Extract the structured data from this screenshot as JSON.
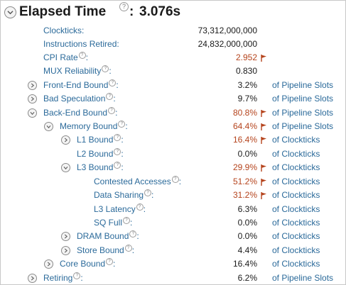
{
  "header": {
    "title": "Elapsed Time",
    "colon": ":",
    "value": "3.076s"
  },
  "colors": {
    "link": "#2b6a9a",
    "warn": "#b5441d",
    "text": "#1a1a1a"
  },
  "rows": [
    {
      "label": "Clockticks:",
      "value": "73,312,000,000",
      "unit": "",
      "help": false,
      "toggle": "none",
      "warn": false
    },
    {
      "label": "Instructions Retired:",
      "value": "24,832,000,000",
      "unit": "",
      "help": false,
      "toggle": "none",
      "warn": false
    },
    {
      "label": "CPI Rate",
      "value": "2.952",
      "unit": "",
      "help": true,
      "toggle": "none",
      "warn": true
    },
    {
      "label": "MUX Reliability",
      "value": "0.830",
      "unit": "",
      "help": true,
      "toggle": "none",
      "warn": false
    },
    {
      "label": "Front-End Bound",
      "value": "3.2%",
      "unit": "of Pipeline Slots",
      "help": true,
      "toggle": "collapsed",
      "warn": false
    },
    {
      "label": "Bad Speculation",
      "value": "9.7%",
      "unit": "of Pipeline Slots",
      "help": true,
      "toggle": "collapsed",
      "warn": false
    },
    {
      "label": "Back-End Bound",
      "value": "80.8%",
      "unit": "of Pipeline Slots",
      "help": true,
      "toggle": "expanded",
      "warn": true
    },
    {
      "label": "Memory Bound",
      "value": "64.4%",
      "unit": "of Pipeline Slots",
      "help": true,
      "toggle": "expanded",
      "warn": true
    },
    {
      "label": "L1 Bound",
      "value": "16.4%",
      "unit": "of Clockticks",
      "help": true,
      "toggle": "collapsed",
      "warn": true
    },
    {
      "label": "L2 Bound",
      "value": "0.0%",
      "unit": "of Clockticks",
      "help": true,
      "toggle": "none",
      "warn": false
    },
    {
      "label": "L3 Bound",
      "value": "29.9%",
      "unit": "of Clockticks",
      "help": true,
      "toggle": "expanded",
      "warn": true
    },
    {
      "label": "Contested Accesses",
      "value": "51.2%",
      "unit": "of Clockticks",
      "help": true,
      "toggle": "none",
      "warn": true
    },
    {
      "label": "Data Sharing",
      "value": "31.2%",
      "unit": "of Clockticks",
      "help": true,
      "toggle": "none",
      "warn": true
    },
    {
      "label": "L3 Latency",
      "value": "6.3%",
      "unit": "of Clockticks",
      "help": true,
      "toggle": "none",
      "warn": false
    },
    {
      "label": "SQ Full",
      "value": "0.0%",
      "unit": "of Clockticks",
      "help": true,
      "toggle": "none",
      "warn": false
    },
    {
      "label": "DRAM Bound",
      "value": "0.0%",
      "unit": "of Clockticks",
      "help": true,
      "toggle": "collapsed",
      "warn": false
    },
    {
      "label": "Store Bound",
      "value": "4.4%",
      "unit": "of Clockticks",
      "help": true,
      "toggle": "collapsed",
      "warn": false
    },
    {
      "label": "Core Bound",
      "value": "16.4%",
      "unit": "of Clockticks",
      "help": true,
      "toggle": "collapsed",
      "warn": false
    },
    {
      "label": "Retiring",
      "value": "6.2%",
      "unit": "of Pipeline Slots",
      "help": true,
      "toggle": "collapsed",
      "warn": false
    }
  ]
}
